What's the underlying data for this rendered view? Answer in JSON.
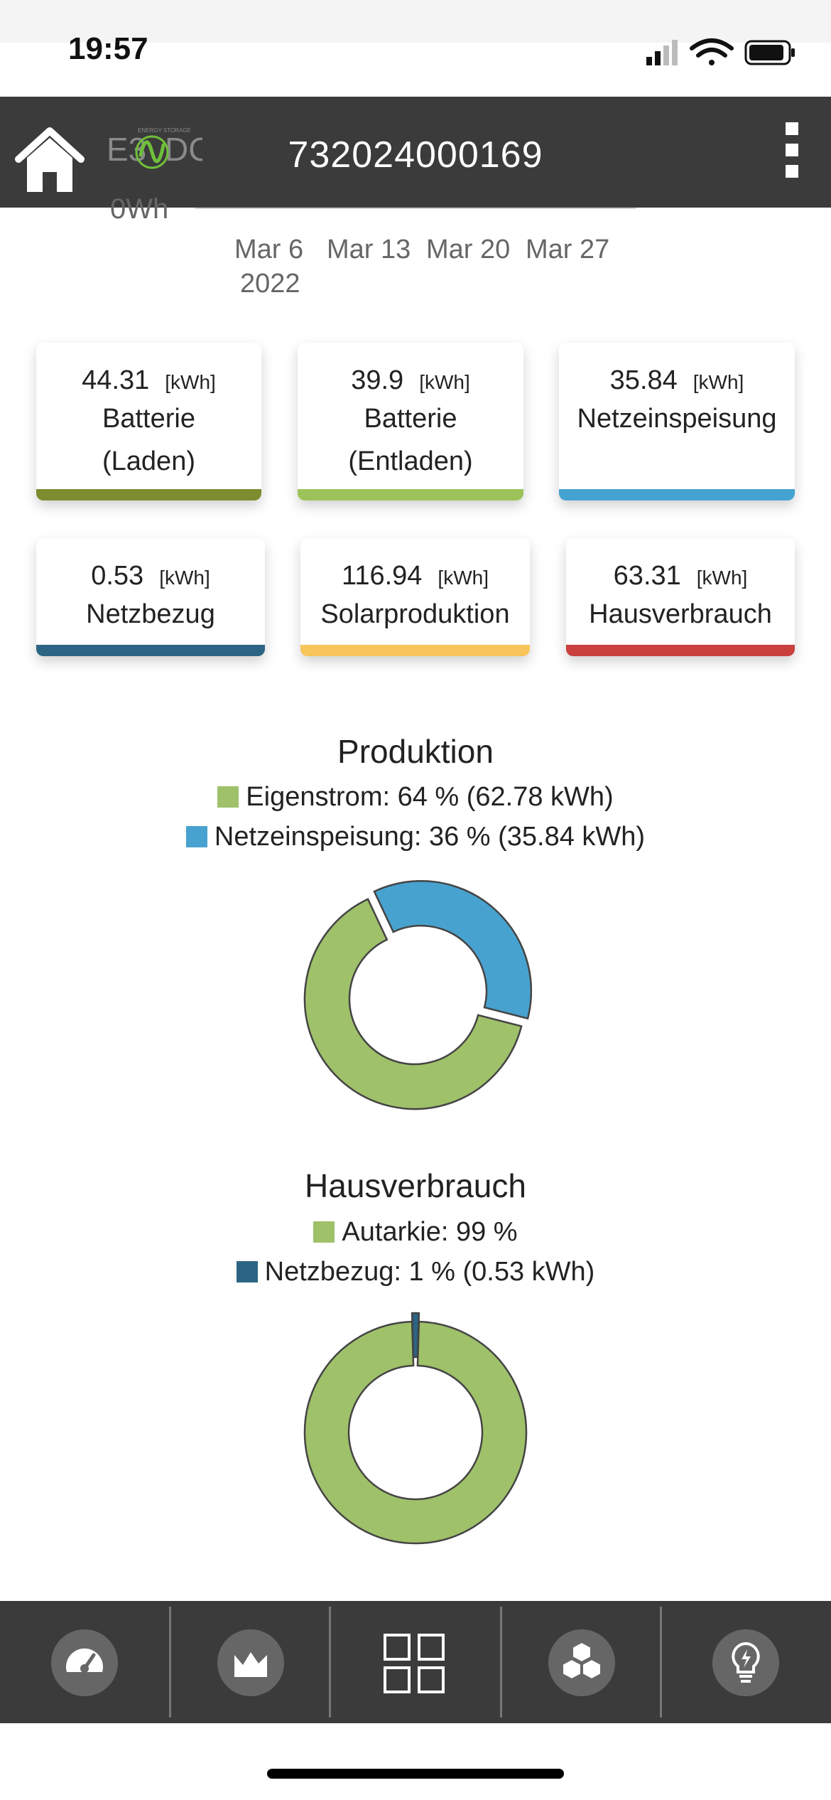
{
  "status": {
    "time": "19:57"
  },
  "header": {
    "device_id": "732024000169",
    "logo_text_left": "E3",
    "logo_text_right": "DC",
    "logo_tagline": "ENERGY STORAGE"
  },
  "axis": {
    "cut_label": "0Wh",
    "ticks": [
      "Mar 6",
      "Mar 13",
      "Mar 20",
      "Mar 27"
    ],
    "year": "2022"
  },
  "cards": [
    {
      "value": "44.31",
      "unit": "[kWh]",
      "label_line1": "Batterie",
      "label_line2": "(Laden)",
      "color": "#7d8c2e"
    },
    {
      "value": "39.9",
      "unit": "[kWh]",
      "label_line1": "Batterie",
      "label_line2": "(Entladen)",
      "color": "#9cc35a"
    },
    {
      "value": "35.84",
      "unit": "[kWh]",
      "label_line1": "Netzeinspeisung",
      "label_line2": "",
      "color": "#45a3d1"
    },
    {
      "value": "0.53",
      "unit": "[kWh]",
      "label_line1": "Netzbezug",
      "label_line2": "",
      "color": "#2c6583"
    },
    {
      "value": "116.94",
      "unit": "[kWh]",
      "label_line1": "Solarproduktion",
      "label_line2": "",
      "color": "#f7c55a"
    },
    {
      "value": "63.31",
      "unit": "[kWh]",
      "label_line1": "Hausverbrauch",
      "label_line2": "",
      "color": "#c9403f"
    }
  ],
  "produktion": {
    "title": "Produktion",
    "legend": [
      {
        "text": "Eigenstrom: 64 % (62.78 kWh)",
        "color": "#9fc16a"
      },
      {
        "text": "Netzeinspeisung: 36 % (35.84 kWh)",
        "color": "#48a2cf"
      }
    ]
  },
  "hausverbrauch": {
    "title": "Hausverbrauch",
    "legend": [
      {
        "text": "Autarkie: 99 %",
        "color": "#9fc16a"
      },
      {
        "text": "Netzbezug: 1 % (0.53 kWh)",
        "color": "#2c6583"
      }
    ]
  },
  "chart_data": [
    {
      "type": "pie",
      "title": "Produktion",
      "categories": [
        "Eigenstrom",
        "Netzeinspeisung"
      ],
      "values": [
        64,
        36
      ],
      "colors": [
        "#9fc16a",
        "#48a2cf"
      ],
      "donut": true
    },
    {
      "type": "pie",
      "title": "Hausverbrauch",
      "categories": [
        "Autarkie",
        "Netzbezug"
      ],
      "values": [
        99,
        1
      ],
      "colors": [
        "#9fc16a",
        "#2c6583"
      ],
      "donut": true
    }
  ],
  "nav": {
    "items": [
      "gauge-icon",
      "chart-icon",
      "grid-icon",
      "cubes-icon",
      "bulb-icon"
    ],
    "active_index": 2
  }
}
